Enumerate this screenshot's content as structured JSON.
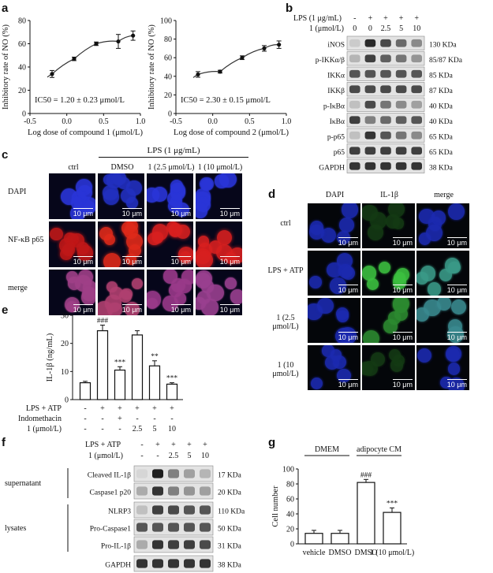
{
  "panels": [
    "a",
    "b",
    "c",
    "d",
    "e",
    "f",
    "g"
  ],
  "panel_a": {
    "left": {
      "ylabel": "Inhibitory rate of NO (%)",
      "xlabel": "Log dose of compound 1 (μmol/L)",
      "ic50": "IC50 = 1.20 ± 0.23 μmol/L",
      "yticks": [
        "0",
        "20",
        "40",
        "60",
        "80"
      ],
      "xticks": [
        "-0.5",
        "0.0",
        "0.5",
        "1.0"
      ],
      "x": [
        -0.2,
        0.1,
        0.4,
        0.7,
        0.9
      ],
      "y": [
        34,
        47,
        60,
        62,
        67
      ],
      "err": [
        3,
        1.5,
        1.5,
        6,
        4
      ]
    },
    "right": {
      "ylabel": "Inhibitory rate of NO (%)",
      "xlabel": "Log dose of compound 2 (μmol/L)",
      "ic50": "IC50 = 2.30 ± 0.15 μmol/L",
      "yticks": [
        "0",
        "20",
        "40",
        "60",
        "80",
        "100"
      ],
      "xticks": [
        "-0.5",
        "0.0",
        "0.5",
        "1.0"
      ],
      "x": [
        -0.2,
        0.1,
        0.4,
        0.7,
        0.9
      ],
      "y": [
        42,
        45,
        60,
        70,
        74
      ],
      "err": [
        3,
        1.5,
        2,
        3,
        4
      ]
    }
  },
  "panel_b": {
    "lps_label": "LPS (1 μg/mL)",
    "lps_values": [
      "-",
      "+",
      "+",
      "+",
      "+"
    ],
    "dose_label": "1 (μmol/L)",
    "dose_values": [
      "0",
      "0",
      "2.5",
      "5",
      "10"
    ],
    "blots": [
      {
        "name": "iNOS",
        "kda": "130 KDa",
        "intensity": [
          0.15,
          0.9,
          0.75,
          0.6,
          0.45
        ]
      },
      {
        "name": "p-IKKα/β",
        "kda": "85/87 KDa",
        "intensity": [
          0.25,
          0.8,
          0.65,
          0.55,
          0.4
        ]
      },
      {
        "name": "IKKα",
        "kda": "85 KDa",
        "intensity": [
          0.7,
          0.7,
          0.7,
          0.7,
          0.7
        ]
      },
      {
        "name": "IKKβ",
        "kda": "87 KDa",
        "intensity": [
          0.75,
          0.75,
          0.75,
          0.75,
          0.75
        ]
      },
      {
        "name": "p-IκBα",
        "kda": "40 KDa",
        "intensity": [
          0.2,
          0.75,
          0.55,
          0.45,
          0.35
        ]
      },
      {
        "name": "IκBα",
        "kda": "40 KDa",
        "intensity": [
          0.8,
          0.5,
          0.6,
          0.65,
          0.7
        ]
      },
      {
        "name": "p-p65",
        "kda": "65 KDa",
        "intensity": [
          0.2,
          0.85,
          0.7,
          0.55,
          0.45
        ]
      },
      {
        "name": "p65",
        "kda": "65 KDa",
        "intensity": [
          0.8,
          0.8,
          0.8,
          0.8,
          0.8
        ]
      },
      {
        "name": "GAPDH",
        "kda": "38 KDa",
        "intensity": [
          0.85,
          0.85,
          0.85,
          0.85,
          0.85
        ]
      }
    ]
  },
  "panel_c": {
    "lps_label": "LPS (1 μg/mL)",
    "columns": [
      "ctrl",
      "DMSO",
      "1 (2.5 μmol/L)",
      "1 (10 μmol/L)"
    ],
    "rows": [
      "DAPI",
      "NF-κB p65",
      "merge"
    ],
    "scale": "10 μm"
  },
  "panel_d": {
    "columns": [
      "DAPI",
      "IL-1β",
      "merge"
    ],
    "rows": [
      "ctrl",
      "LPS + ATP",
      "1 (2.5 μmol/L)",
      "1 (10 μmol/L)"
    ],
    "scale": "10 μm"
  },
  "panel_e": {
    "chart_data": {
      "type": "bar",
      "ylabel": "IL-1β (ng/mL)",
      "ylim": [
        0,
        30
      ],
      "yticks": [
        "0",
        "10",
        "20",
        "30"
      ],
      "values": [
        6,
        24.5,
        10.5,
        23,
        12,
        5.5
      ],
      "err": [
        0.5,
        2,
        1.2,
        1.5,
        1.8,
        0.5
      ],
      "annotations": [
        "",
        "###",
        "***",
        "",
        "**",
        "***"
      ]
    },
    "rows": [
      {
        "label": "LPS + ATP",
        "values": [
          "-",
          "+",
          "+",
          "+",
          "+",
          "+"
        ]
      },
      {
        "label": "Indomethacin",
        "values": [
          "-",
          "-",
          "+",
          "-",
          "-",
          "-"
        ]
      },
      {
        "label": "1 (μmol/L)",
        "values": [
          "-",
          "-",
          "-",
          "2.5",
          "5",
          "10"
        ]
      }
    ]
  },
  "panel_f": {
    "lps_label": "LPS + ATP",
    "lps_values": [
      "-",
      "+",
      "+",
      "+",
      "+"
    ],
    "dose_label": "1 (μmol/L)",
    "dose_values": [
      "-",
      "-",
      "2.5",
      "5",
      "10"
    ],
    "groups": [
      {
        "name": "supernatant",
        "blots": [
          {
            "name": "Cleaved IL-1β",
            "kda": "17 KDa",
            "intensity": [
              0.1,
              0.95,
              0.5,
              0.35,
              0.25
            ]
          },
          {
            "name": "Caspase1 p20",
            "kda": "20 KDa",
            "intensity": [
              0.3,
              0.85,
              0.5,
              0.4,
              0.35
            ]
          }
        ]
      },
      {
        "name": "lysates",
        "blots": [
          {
            "name": "NLRP3",
            "kda": "110 KDa",
            "intensity": [
              0.2,
              0.8,
              0.75,
              0.7,
              0.7
            ]
          },
          {
            "name": "Pro-Caspase1",
            "kda": "50 KDa",
            "intensity": [
              0.7,
              0.7,
              0.7,
              0.7,
              0.7
            ]
          },
          {
            "name": "Pro-IL-1β",
            "kda": "31 KDa",
            "intensity": [
              0.3,
              0.85,
              0.8,
              0.8,
              0.75
            ]
          }
        ]
      },
      {
        "name": "",
        "blots": [
          {
            "name": "GAPDH",
            "kda": "38 KDa",
            "intensity": [
              0.85,
              0.85,
              0.85,
              0.85,
              0.85
            ]
          }
        ]
      }
    ]
  },
  "panel_g": {
    "chart_data": {
      "type": "bar",
      "ylabel": "Cell number",
      "ylim": [
        0,
        100
      ],
      "yticks": [
        "0",
        "20",
        "40",
        "60",
        "80",
        "100"
      ],
      "categories": [
        "vehicle",
        "DMSO",
        "DMSO",
        "1 (10 μmol/L)"
      ],
      "values": [
        14,
        14,
        82,
        42
      ],
      "err": [
        4,
        4,
        4,
        6
      ],
      "annotations": [
        "",
        "",
        "###",
        "***"
      ],
      "groups": [
        {
          "label": "DMEM",
          "span": [
            0,
            1
          ]
        },
        {
          "label": "adipocyte CM",
          "span": [
            2,
            3
          ]
        }
      ]
    }
  }
}
